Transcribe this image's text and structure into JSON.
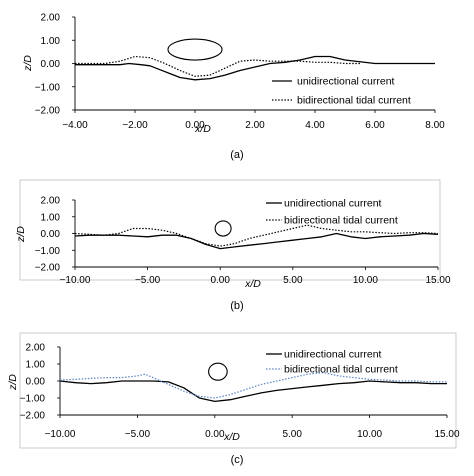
{
  "chart_data": [
    {
      "type": "line",
      "caption": "(a)",
      "xlabel": "x/D",
      "ylabel": "z/D",
      "xlim": [
        -4,
        8
      ],
      "ylim": [
        -2,
        2
      ],
      "xticks": [
        "−4.00",
        "−2.00",
        "0.00",
        "2.00",
        "4.00",
        "6.00",
        "8.00"
      ],
      "yticks": [
        "−2.00",
        "−1.00",
        "0.00",
        "1.00",
        "2.00"
      ],
      "legend_position": "right",
      "pile_outline": {
        "x": 0.0,
        "y": 0.6,
        "rx": 0.9,
        "ry": 0.45
      },
      "series": [
        {
          "name": "unidirectional current",
          "style": "solid",
          "color": "#000000",
          "x": [
            -4,
            -3,
            -2.5,
            -2.2,
            -1.8,
            -1.5,
            -1.2,
            -0.8,
            -0.5,
            0,
            0.5,
            1,
            1.5,
            2,
            2.5,
            3,
            3.5,
            4,
            4.5,
            5,
            6,
            7,
            8
          ],
          "y": [
            -0.05,
            -0.05,
            -0.05,
            0.0,
            -0.05,
            -0.1,
            -0.25,
            -0.45,
            -0.6,
            -0.7,
            -0.65,
            -0.5,
            -0.3,
            -0.15,
            0.0,
            0.05,
            0.15,
            0.3,
            0.3,
            0.15,
            0.0,
            0.0,
            0.0
          ]
        },
        {
          "name": "bidirectional tidal current",
          "style": "dotted",
          "color": "#000000",
          "x": [
            -4,
            -3,
            -2.5,
            -2,
            -1.5,
            -1,
            -0.5,
            0,
            0.5,
            1,
            1.5,
            2,
            2.5,
            3,
            3.5,
            4,
            4.5,
            5,
            5.5
          ],
          "y": [
            0.0,
            0.0,
            0.1,
            0.3,
            0.25,
            0.0,
            -0.3,
            -0.55,
            -0.5,
            -0.2,
            0.1,
            0.15,
            0.1,
            0.1,
            0.1,
            0.05,
            0.05,
            0.0,
            0.0
          ]
        }
      ]
    },
    {
      "type": "line",
      "caption": "(b)",
      "xlabel": "x/D",
      "ylabel": "z/D",
      "xlim": [
        -10,
        15
      ],
      "ylim": [
        -2,
        2
      ],
      "xticks": [
        "−10.00",
        "−5.00",
        "0.00",
        "5.00",
        "10.00",
        "15.00"
      ],
      "yticks": [
        "−2.00",
        "−1.00",
        "0.00",
        "1.00",
        "2.00"
      ],
      "legend_position": "top-right",
      "pile_outline": {
        "x": 0.2,
        "y": 0.3,
        "rx": 0.55,
        "ry": 0.45
      },
      "series": [
        {
          "name": "unidirectional current",
          "style": "solid",
          "color": "#000000",
          "x": [
            -10,
            -9,
            -8,
            -7,
            -6,
            -5,
            -4,
            -3,
            -2,
            -1,
            0,
            1,
            2,
            3,
            4,
            5,
            6,
            7,
            8,
            9,
            10,
            11,
            12,
            13,
            14,
            15
          ],
          "y": [
            -0.15,
            -0.1,
            -0.1,
            -0.1,
            -0.15,
            -0.2,
            -0.1,
            -0.1,
            -0.3,
            -0.65,
            -0.9,
            -0.8,
            -0.7,
            -0.6,
            -0.5,
            -0.4,
            -0.3,
            -0.2,
            0.0,
            -0.2,
            -0.3,
            -0.2,
            -0.15,
            -0.1,
            0.0,
            -0.05
          ]
        },
        {
          "name": "bidirectional tidal current",
          "style": "dotted",
          "color": "#000000",
          "x": [
            -10,
            -9,
            -8,
            -7,
            -6,
            -5,
            -4,
            -3,
            -2,
            -1,
            0,
            1,
            2,
            3,
            4,
            5,
            6,
            7,
            8,
            9,
            10,
            11,
            12,
            13,
            14,
            15
          ],
          "y": [
            0.0,
            -0.05,
            -0.1,
            0.0,
            0.3,
            0.3,
            0.2,
            0.0,
            -0.3,
            -0.6,
            -0.75,
            -0.6,
            -0.3,
            -0.1,
            0.1,
            0.3,
            0.5,
            0.3,
            0.2,
            0.1,
            0.1,
            0.05,
            0.0,
            0.05,
            0.05,
            0.0
          ]
        }
      ]
    },
    {
      "type": "line",
      "caption": "(c)",
      "xlabel": "x/D",
      "ylabel": "z/D",
      "xlim": [
        -10,
        15
      ],
      "ylim": [
        -2,
        2
      ],
      "xticks": [
        "−10.00",
        "−5.00",
        "0.00",
        "5.00",
        "10.00",
        "15.00"
      ],
      "yticks": [
        "−2.00",
        "−1.00",
        "0.00",
        "1.00",
        "2.00"
      ],
      "legend_position": "top-right",
      "pile_outline": {
        "x": 0.2,
        "y": 0.55,
        "rx": 0.6,
        "ry": 0.5
      },
      "series": [
        {
          "name": "unidirectional current",
          "style": "solid",
          "color": "#000000",
          "x": [
            -10,
            -9,
            -8,
            -7,
            -6,
            -5,
            -4,
            -3,
            -2,
            -1,
            0,
            1,
            2,
            3,
            4,
            5,
            6,
            7,
            8,
            9,
            10,
            11,
            12,
            13,
            14,
            15
          ],
          "y": [
            0.0,
            -0.1,
            -0.15,
            -0.1,
            0.0,
            0.0,
            0.0,
            -0.05,
            -0.4,
            -1.0,
            -1.2,
            -1.1,
            -0.9,
            -0.7,
            -0.55,
            -0.45,
            -0.35,
            -0.25,
            -0.15,
            -0.1,
            0.0,
            -0.05,
            -0.1,
            -0.1,
            -0.15,
            -0.15
          ]
        },
        {
          "name": "bidirectional tidal current",
          "style": "dotted",
          "color": "#5b82c6",
          "x": [
            -10,
            -9,
            -8,
            -7,
            -6,
            -5,
            -4.5,
            -4,
            -3,
            -2,
            -1,
            0,
            1,
            2,
            3,
            4,
            5,
            6,
            7,
            8,
            9,
            10,
            11,
            12,
            13,
            14,
            15
          ],
          "y": [
            0.05,
            0.1,
            0.15,
            0.2,
            0.2,
            0.3,
            0.4,
            0.2,
            -0.2,
            -0.6,
            -0.9,
            -1.0,
            -0.8,
            -0.5,
            -0.2,
            0.0,
            0.2,
            0.4,
            0.5,
            0.3,
            0.2,
            0.1,
            0.05,
            0.0,
            0.0,
            -0.05,
            -0.05
          ]
        }
      ]
    }
  ]
}
